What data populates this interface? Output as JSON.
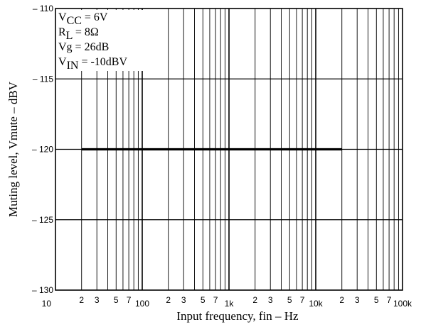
{
  "chart_data": {
    "type": "line",
    "xlabel": "Input frequency, fin  –  Hz",
    "ylabel": "Muting level, Vmute  –  dBV",
    "x_scale": "log",
    "xlim": [
      10,
      100000
    ],
    "ylim": [
      -130,
      -110
    ],
    "y_ticks": [
      -110,
      -115,
      -120,
      -125,
      -130
    ],
    "y_tick_labels": [
      "– 110",
      "– 115",
      "– 120",
      "– 125",
      "– 130"
    ],
    "x_decade_labels": [
      {
        "value": 10,
        "label": "10"
      },
      {
        "value": 100,
        "label": "100"
      },
      {
        "value": 1000,
        "label": "1k"
      },
      {
        "value": 10000,
        "label": "10k"
      },
      {
        "value": 100000,
        "label": "100k"
      }
    ],
    "x_minor_labels": [
      "2",
      "3",
      "5",
      "7"
    ],
    "x_minor_multipliers": [
      2,
      3,
      5,
      7
    ],
    "grid": true,
    "conditions": [
      {
        "main": "V",
        "sub": "CC",
        "rest": " = 6V"
      },
      {
        "main": "R",
        "sub": "L",
        "rest": " = 8Ω"
      },
      {
        "main": "Vg = 26dB",
        "sub": "",
        "rest": ""
      },
      {
        "main": "V",
        "sub": "IN",
        "rest": " = -10dBV"
      }
    ],
    "series": [
      {
        "x": [
          20,
          20000
        ],
        "y": [
          -120,
          -120
        ]
      }
    ]
  }
}
